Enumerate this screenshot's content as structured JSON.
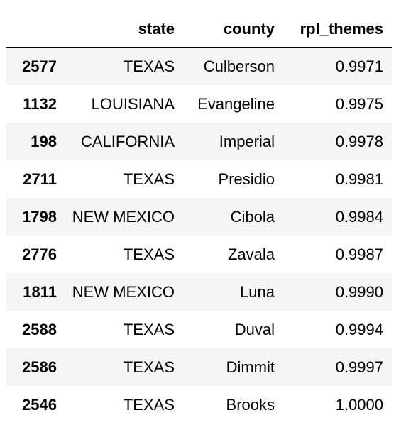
{
  "table": {
    "columns": [
      "",
      "state",
      "county",
      "rpl_themes"
    ],
    "rows": [
      {
        "index": "2577",
        "state": "TEXAS",
        "county": "Culberson",
        "rpl_themes": "0.9971"
      },
      {
        "index": "1132",
        "state": "LOUISIANA",
        "county": "Evangeline",
        "rpl_themes": "0.9975"
      },
      {
        "index": "198",
        "state": "CALIFORNIA",
        "county": "Imperial",
        "rpl_themes": "0.9978"
      },
      {
        "index": "2711",
        "state": "TEXAS",
        "county": "Presidio",
        "rpl_themes": "0.9981"
      },
      {
        "index": "1798",
        "state": "NEW MEXICO",
        "county": "Cibola",
        "rpl_themes": "0.9984"
      },
      {
        "index": "2776",
        "state": "TEXAS",
        "county": "Zavala",
        "rpl_themes": "0.9987"
      },
      {
        "index": "1811",
        "state": "NEW MEXICO",
        "county": "Luna",
        "rpl_themes": "0.9990"
      },
      {
        "index": "2588",
        "state": "TEXAS",
        "county": "Duval",
        "rpl_themes": "0.9994"
      },
      {
        "index": "2586",
        "state": "TEXAS",
        "county": "Dimmit",
        "rpl_themes": "0.9997"
      },
      {
        "index": "2546",
        "state": "TEXAS",
        "county": "Brooks",
        "rpl_themes": "1.0000"
      }
    ]
  },
  "colors": {
    "stripe": "#f5f5f5",
    "header_rule": "#000000"
  }
}
